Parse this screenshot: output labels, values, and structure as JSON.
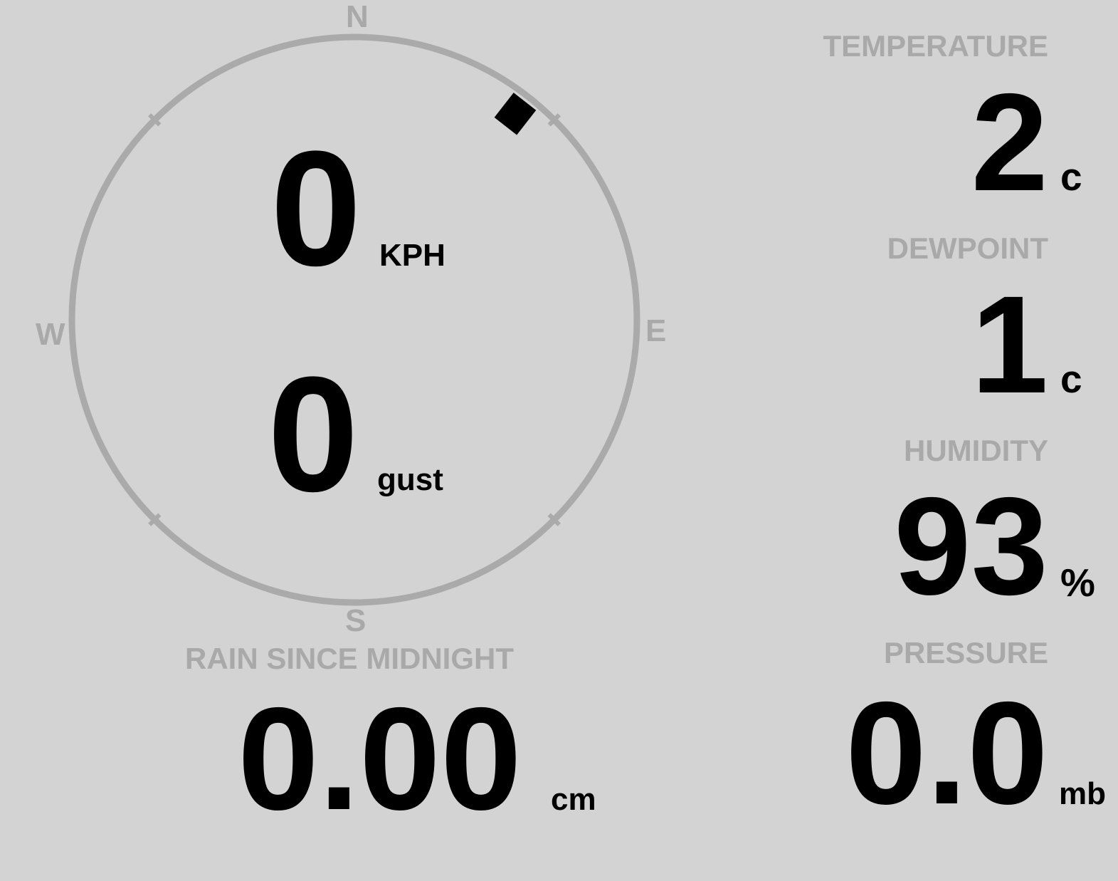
{
  "colors": {
    "background": "#d3d3d3",
    "label": "#a9a9a9",
    "value": "#000000",
    "ring": "#aaaaaa",
    "wind_marker": "#000000"
  },
  "compass": {
    "directions": {
      "n": "N",
      "e": "E",
      "s": "S",
      "w": "W"
    },
    "wind_direction_deg": 38,
    "wind_speed": "0",
    "wind_speed_unit": "KPH",
    "gust": "0",
    "gust_unit": "gust"
  },
  "rain": {
    "label": "RAIN SINCE MIDNIGHT",
    "value": "0.00",
    "unit": "cm"
  },
  "temperature": {
    "label": "TEMPERATURE",
    "value": "2",
    "unit": "c"
  },
  "dewpoint": {
    "label": "DEWPOINT",
    "value": "1",
    "unit": "c"
  },
  "humidity": {
    "label": "HUMIDITY",
    "value": "93",
    "unit": "%"
  },
  "pressure": {
    "label": "PRESSURE",
    "value": "0.0",
    "unit": "mb"
  }
}
